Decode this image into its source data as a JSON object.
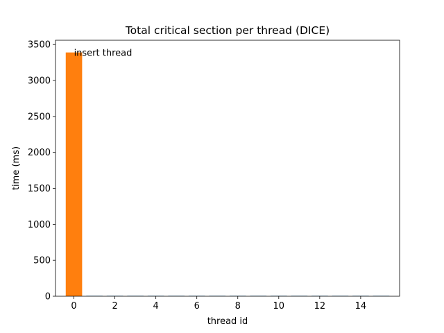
{
  "chart_data": {
    "type": "bar",
    "title": "Total critical section per thread (DICE)",
    "xlabel": "thread id",
    "ylabel": "time (ms)",
    "xlim": [
      -0.9,
      15.9
    ],
    "ylim": [
      0,
      3560
    ],
    "xticks": [
      0,
      2,
      4,
      6,
      8,
      10,
      12,
      14
    ],
    "yticks": [
      0,
      500,
      1000,
      1500,
      2000,
      2500,
      3000,
      3500
    ],
    "grid": false,
    "series": [
      {
        "color": "#1f77b4",
        "x": [
          1,
          2,
          3,
          4,
          5,
          6,
          7,
          8,
          9,
          10,
          11,
          12,
          13,
          14,
          15
        ],
        "values": [
          6,
          6,
          6,
          6,
          6,
          6,
          6,
          6,
          6,
          6,
          6,
          6,
          6,
          6,
          6
        ]
      },
      {
        "color": "#ff7f0e",
        "x": [
          0
        ],
        "values": [
          3390
        ]
      }
    ],
    "annotations": [
      {
        "text": "insert thread",
        "x": 0,
        "y": 3390
      }
    ]
  }
}
